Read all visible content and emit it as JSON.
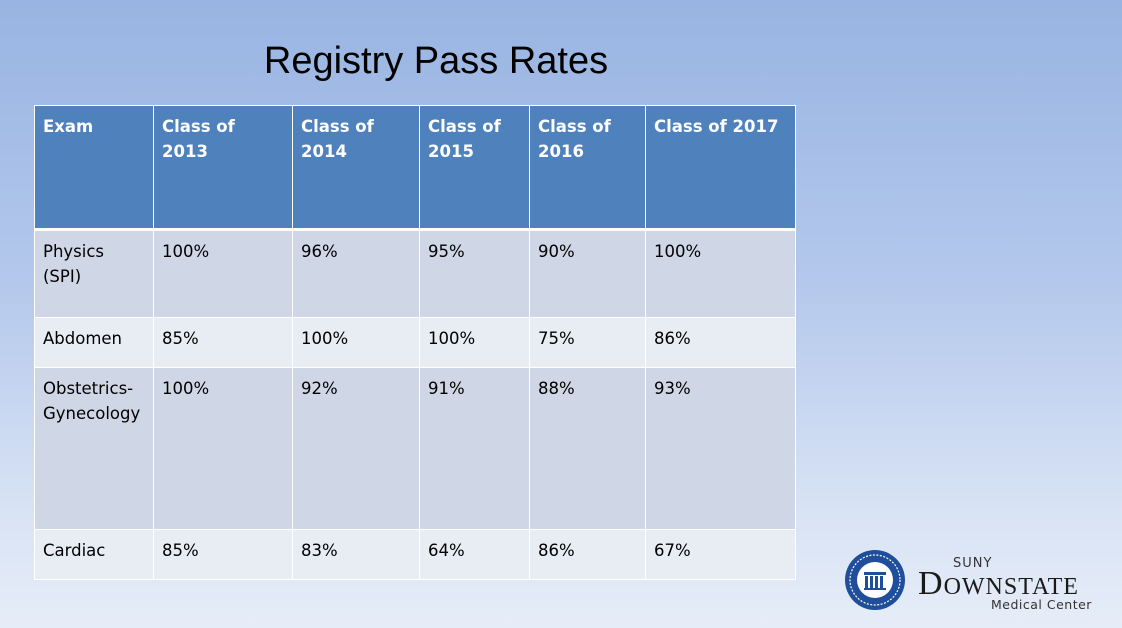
{
  "title": "Registry Pass Rates",
  "table": {
    "headers": [
      "Exam",
      "Class of 2013",
      "Class of 2014",
      "Class of 2015",
      "Class of 2016",
      "Class of 2017"
    ],
    "rows": [
      {
        "exam": "Physics (SPI)",
        "values": [
          "100%",
          "96%",
          "95%",
          "90%",
          "100%"
        ]
      },
      {
        "exam": "Abdomen",
        "values": [
          "85%",
          "100%",
          "100%",
          "75%",
          "86%"
        ]
      },
      {
        "exam": "Obstetrics-Gynecology",
        "values": [
          "100%",
          "92%",
          "91%",
          "88%",
          "93%"
        ]
      },
      {
        "exam": "Cardiac",
        "values": [
          "85%",
          "83%",
          "64%",
          "86%",
          "67%"
        ]
      }
    ]
  },
  "logo": {
    "suny": "SUNY",
    "name_initial": "D",
    "name_rest": "OWNSTATE",
    "subtitle": "Medical Center",
    "seal_color": "#1f4e9a"
  }
}
